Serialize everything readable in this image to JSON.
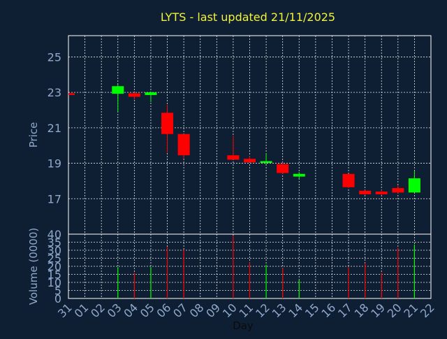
{
  "chart_data": {
    "type": "candlestick",
    "title": "LYTS - last updated 21/11/2025",
    "xlabel": "Day",
    "ylabel": "Price",
    "volume_label": "Volume (0000)",
    "x_ticks": [
      "31",
      "01",
      "02",
      "03",
      "04",
      "05",
      "06",
      "07",
      "08",
      "09",
      "10",
      "11",
      "12",
      "13",
      "14",
      "15",
      "16",
      "17",
      "18",
      "19",
      "20",
      "21",
      "22"
    ],
    "price_ticks": [
      17,
      19,
      21,
      23,
      25
    ],
    "price_ylim": [
      15.0,
      26.2
    ],
    "volume_ticks": [
      0,
      5,
      10,
      15,
      20,
      25,
      30,
      35,
      40
    ],
    "volume_ylim": [
      0,
      40
    ],
    "colors": {
      "up": "#00ff00",
      "down": "#ff0000",
      "background": "#0f1f33",
      "title": "#f2f23a",
      "axis_text": "#8fa9cc"
    },
    "candles": [
      {
        "day": "31",
        "open": 22.95,
        "high": 22.95,
        "low": 22.95,
        "close": 22.92,
        "volume": 0.1
      },
      {
        "day": "03",
        "open": 22.92,
        "high": 23.45,
        "low": 21.9,
        "close": 23.35,
        "volume": 19.5
      },
      {
        "day": "04",
        "open": 22.95,
        "high": 23.0,
        "low": 22.6,
        "close": 22.75,
        "volume": 16.0
      },
      {
        "day": "05",
        "open": 22.85,
        "high": 23.05,
        "low": 22.45,
        "close": 23.0,
        "volume": 19.5
      },
      {
        "day": "06",
        "open": 21.85,
        "high": 22.3,
        "low": 19.6,
        "close": 20.65,
        "volume": 32.0
      },
      {
        "day": "07",
        "open": 20.65,
        "high": 20.65,
        "low": 19.25,
        "close": 19.45,
        "volume": 30.5
      },
      {
        "day": "10",
        "open": 19.45,
        "high": 20.55,
        "low": 19.2,
        "close": 19.2,
        "volume": 39.0
      },
      {
        "day": "11",
        "open": 19.25,
        "high": 19.4,
        "low": 19.05,
        "close": 19.05,
        "volume": 22.5
      },
      {
        "day": "12",
        "open": 19.05,
        "high": 19.55,
        "low": 18.95,
        "close": 19.12,
        "volume": 21.0
      },
      {
        "day": "13",
        "open": 18.95,
        "high": 19.05,
        "low": 18.4,
        "close": 18.45,
        "volume": 19.0
      },
      {
        "day": "14",
        "open": 18.25,
        "high": 18.5,
        "low": 18.1,
        "close": 18.4,
        "volume": 11.5
      },
      {
        "day": "17",
        "open": 18.4,
        "high": 18.4,
        "low": 17.6,
        "close": 17.65,
        "volume": 19.5
      },
      {
        "day": "18",
        "open": 17.45,
        "high": 17.5,
        "low": 17.2,
        "close": 17.25,
        "volume": 22.0
      },
      {
        "day": "19",
        "open": 17.4,
        "high": 17.5,
        "low": 17.2,
        "close": 17.25,
        "volume": 16.0
      },
      {
        "day": "20",
        "open": 17.6,
        "high": 17.75,
        "low": 17.3,
        "close": 17.35,
        "volume": 31.5
      },
      {
        "day": "21",
        "open": 17.35,
        "high": 18.55,
        "low": 17.35,
        "close": 18.15,
        "volume": 33.5
      }
    ]
  }
}
